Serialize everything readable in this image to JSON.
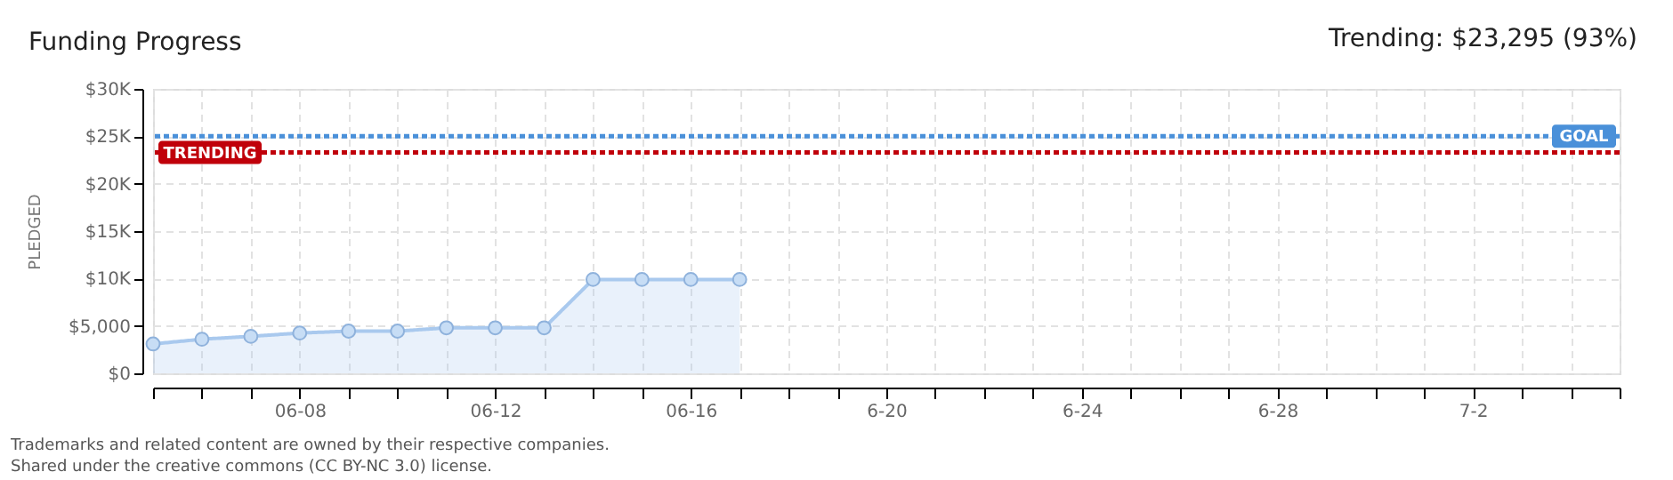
{
  "chart_data": {
    "type": "area",
    "title": "Funding Progress",
    "ylabel": "PLEDGED",
    "annotations": [
      "Trending:  $23,295 (93%)",
      "Trademarks and related content are owned by their respective companies.",
      "Shared under the creative commons (CC BY-NC 3.0) license."
    ],
    "x": [
      "--06-05",
      "--06-06",
      "--06-07",
      "--06-08",
      "--06-09",
      "--06-10",
      "--06-11",
      "--06-12",
      "--06-13",
      "--06-14",
      "--06-15",
      "--06-16",
      "--06-17"
    ],
    "series": [
      {
        "color": "#a9c9ee",
        "values": [
          3100,
          3600,
          3900,
          4250,
          4450,
          4450,
          4800,
          4800,
          4800,
          9900,
          9900,
          9900,
          9900
        ]
      }
    ],
    "marker": "circle",
    "xlim": [
      "--06-05",
      "--07-05"
    ],
    "xticks": [
      {
        "value": "--06-05",
        "label": null
      },
      {
        "value": "--06-06",
        "label": null
      },
      {
        "value": "--06-07",
        "label": null
      },
      {
        "value": "--06-08",
        "label": "06-08"
      },
      {
        "value": "--06-09",
        "label": null
      },
      {
        "value": "--06-10",
        "label": null
      },
      {
        "value": "--06-11",
        "label": null
      },
      {
        "value": "--06-12",
        "label": "06-12"
      },
      {
        "value": "--06-13",
        "label": null
      },
      {
        "value": "--06-14",
        "label": null
      },
      {
        "value": "--06-15",
        "label": null
      },
      {
        "value": "--06-16",
        "label": "06-16"
      },
      {
        "value": "--06-17",
        "label": null
      },
      {
        "value": "--06-18",
        "label": null
      },
      {
        "value": "--06-19",
        "label": null
      },
      {
        "value": "--06-20",
        "label": "6-20"
      },
      {
        "value": "--06-21",
        "label": null
      },
      {
        "value": "--06-22",
        "label": null
      },
      {
        "value": "--06-23",
        "label": null
      },
      {
        "value": "--06-24",
        "label": "6-24"
      },
      {
        "value": "--06-25",
        "label": null
      },
      {
        "value": "--06-26",
        "label": null
      },
      {
        "value": "--06-27",
        "label": null
      },
      {
        "value": "--06-28",
        "label": "6-28"
      },
      {
        "value": "--06-29",
        "label": null
      },
      {
        "value": "--06-30",
        "label": null
      },
      {
        "value": "--07-01",
        "label": null
      },
      {
        "value": "--07-02",
        "label": "7-2"
      },
      {
        "value": "--07-03",
        "label": null
      },
      {
        "value": "--07-04",
        "label": null
      },
      {
        "value": "--07-05",
        "label": null
      }
    ],
    "ylim": [
      0,
      30000
    ],
    "yticks": [
      {
        "value": 0,
        "label": "$0"
      },
      {
        "value": 5000,
        "label": "$5,000"
      },
      {
        "value": 10000,
        "label": "$10K"
      },
      {
        "value": 15000,
        "label": "$15K"
      },
      {
        "value": 20000,
        "label": "$20K"
      },
      {
        "value": 25000,
        "label": "$25K"
      },
      {
        "value": 30000,
        "label": "$30K"
      }
    ],
    "ref_lines": [
      {
        "axis": "y",
        "value": 25000,
        "label": "GOAL",
        "color": "#4a90d9",
        "line_style": "dotted"
      },
      {
        "axis": "y",
        "value": 23295,
        "label": "TRENDING",
        "color": "#c0000a",
        "line_style": "dotted"
      }
    ],
    "grid": true
  }
}
